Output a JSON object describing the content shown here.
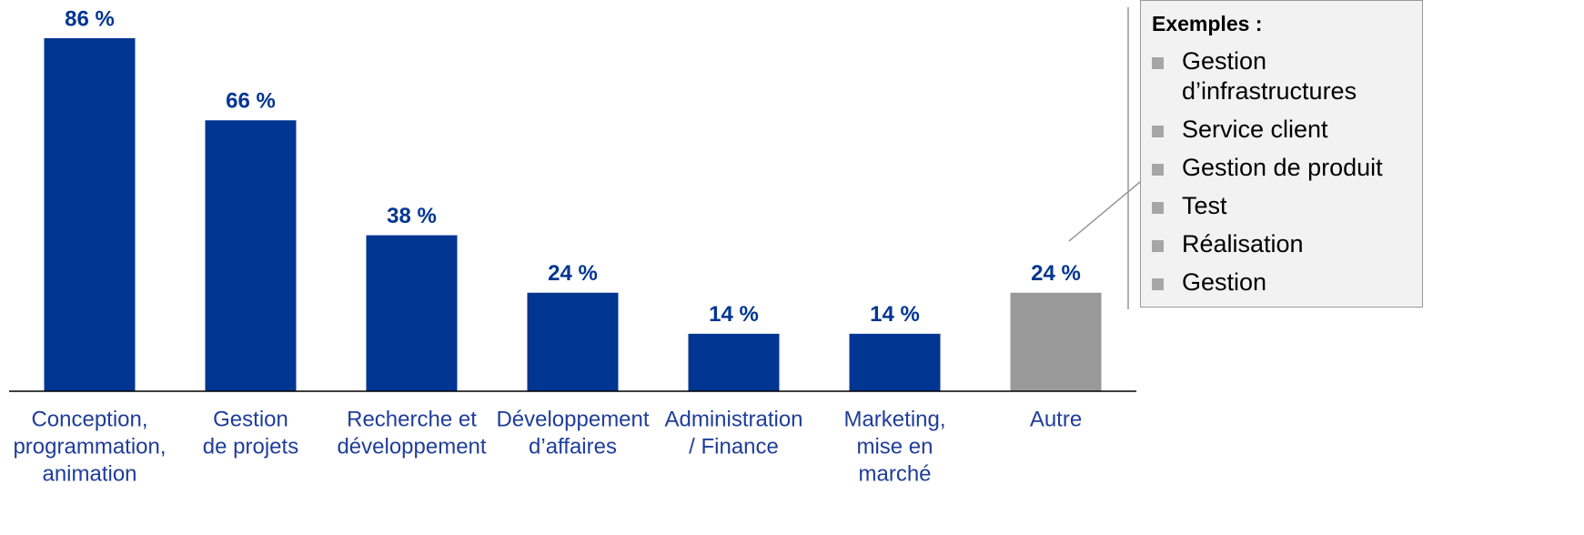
{
  "chart_data": {
    "type": "bar",
    "categories": [
      [
        "Conception,",
        "programmation,",
        "animation"
      ],
      [
        "Gestion",
        "de projets"
      ],
      [
        "Recherche et",
        "développement"
      ],
      [
        "Développement",
        "d’affaires"
      ],
      [
        "Administration",
        "/ Finance"
      ],
      [
        "Marketing,",
        "mise en",
        "marché"
      ],
      [
        "Autre"
      ]
    ],
    "values": [
      86,
      66,
      38,
      24,
      14,
      14,
      24
    ],
    "value_labels": [
      "86 %",
      "66 %",
      "38 %",
      "24 %",
      "14 %",
      "14 %",
      "24 %"
    ],
    "colors": [
      "#003591",
      "#003591",
      "#003591",
      "#003591",
      "#003591",
      "#003591",
      "#999999"
    ],
    "ylim": [
      0,
      86
    ],
    "annotation": {
      "title": "Exemples :",
      "items": [
        "Gestion d’infrastructures",
        "Service client",
        "Gestion de produit",
        "Test",
        "Réalisation",
        "Gestion"
      ]
    }
  }
}
